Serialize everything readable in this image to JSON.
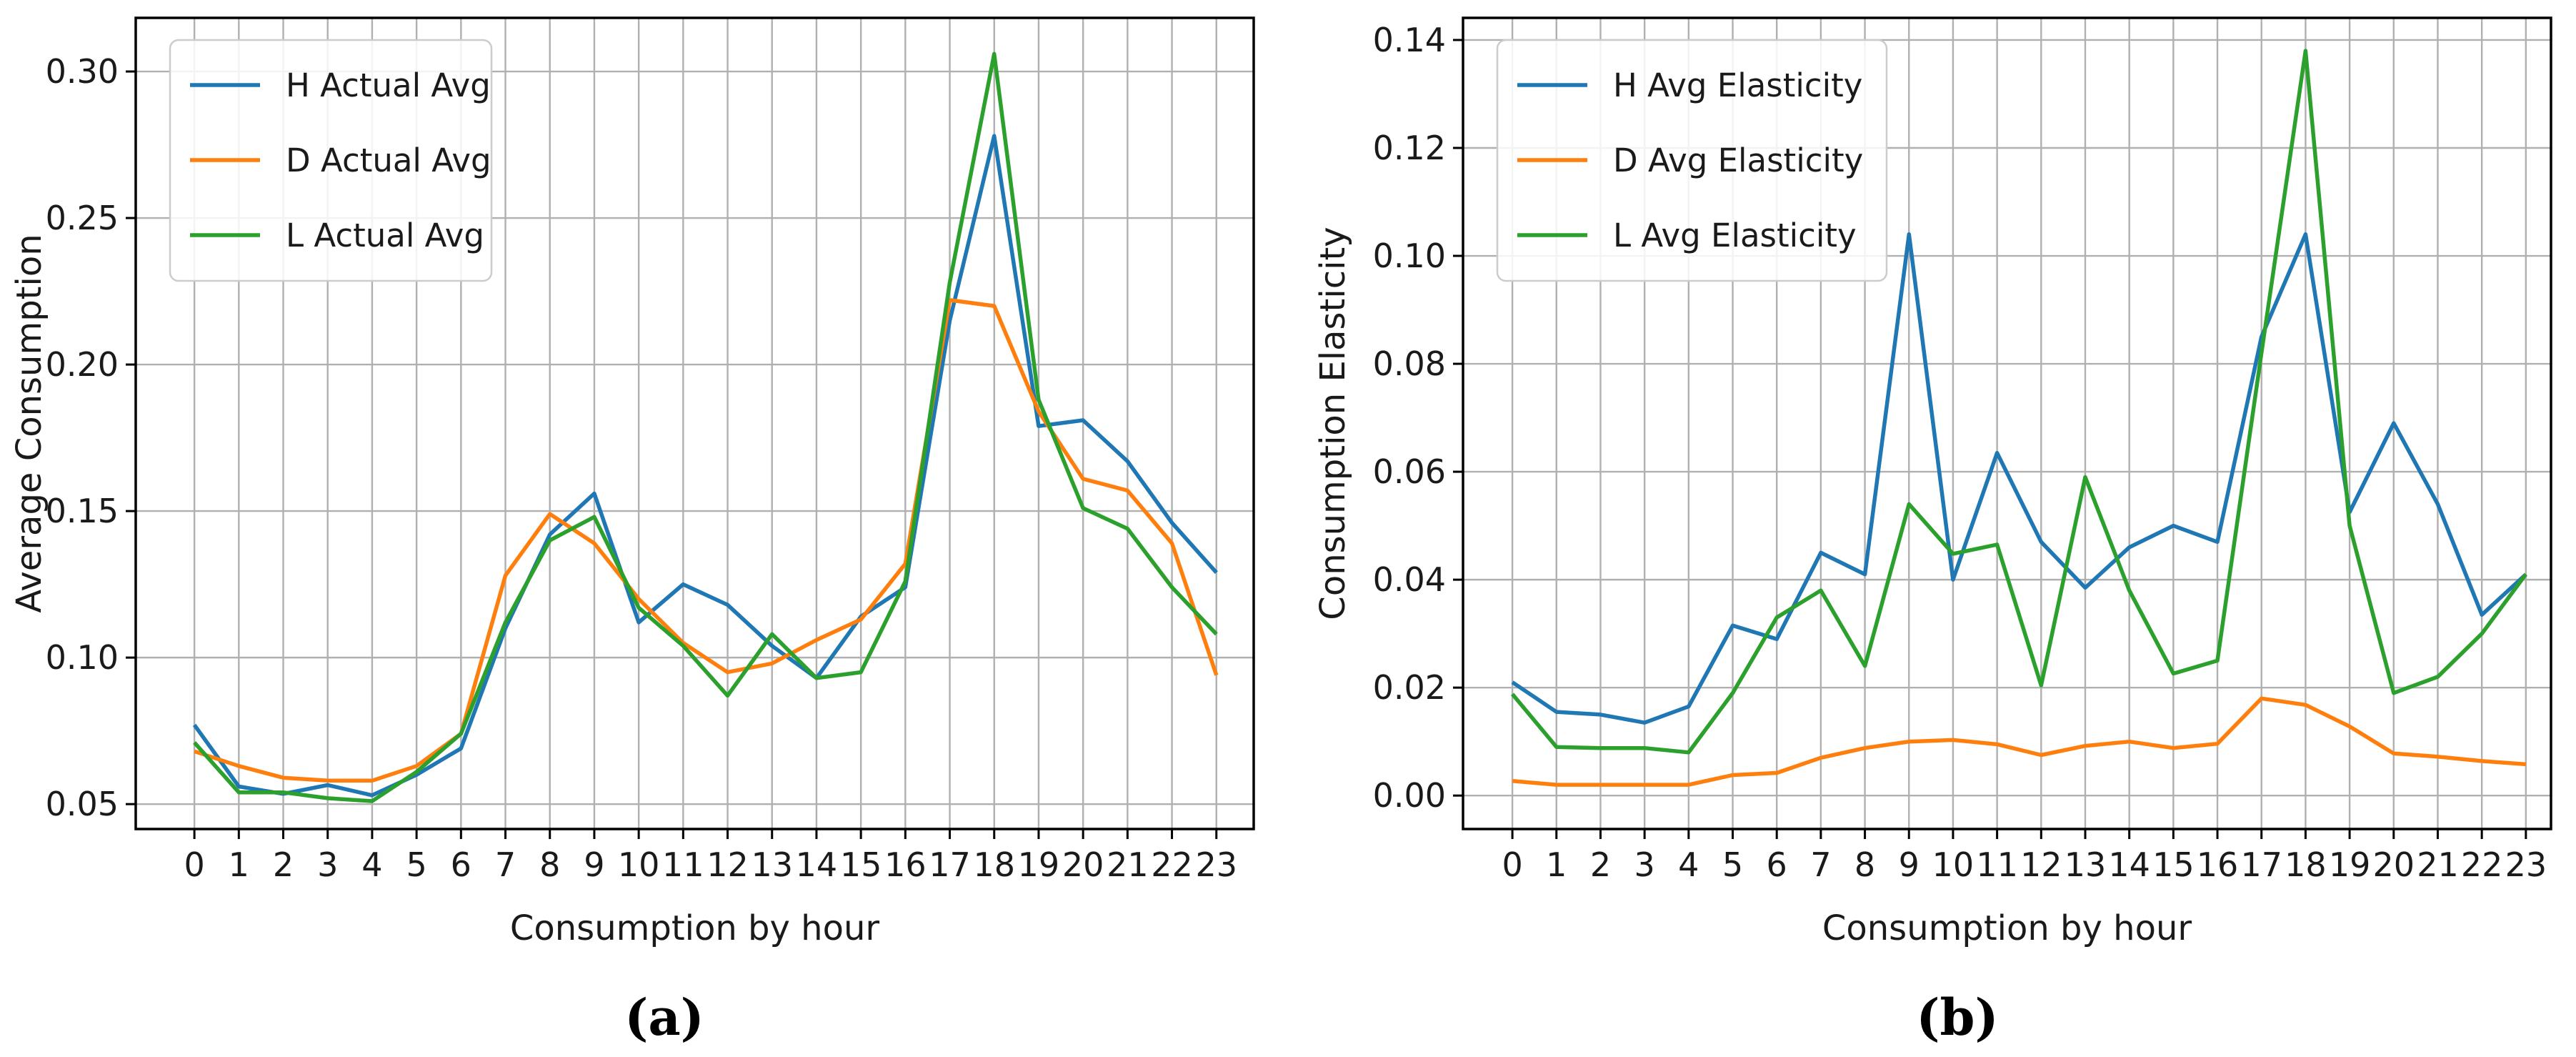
{
  "page": {
    "background": "#ffffff"
  },
  "chart_data": [
    {
      "id": "a",
      "type": "line",
      "caption": "(a)",
      "xlabel": "Consumption by hour",
      "ylabel": "Average Consumption",
      "x": [
        0,
        1,
        2,
        3,
        4,
        5,
        6,
        7,
        8,
        9,
        10,
        11,
        12,
        13,
        14,
        15,
        16,
        17,
        18,
        19,
        20,
        21,
        22,
        23
      ],
      "yticks": [
        0.05,
        0.1,
        0.15,
        0.2,
        0.25,
        0.3
      ],
      "ylim": [
        0.0415,
        0.3183
      ],
      "xlim": [
        -1.32,
        23.84
      ],
      "grid": true,
      "legend_position": "upper-left",
      "series": [
        {
          "name": "H Actual Avg",
          "color": "#1f77b4",
          "values": [
            0.077,
            0.056,
            0.0535,
            0.0565,
            0.053,
            0.06,
            0.069,
            0.11,
            0.142,
            0.156,
            0.112,
            0.125,
            0.118,
            0.104,
            0.093,
            0.114,
            0.124,
            0.215,
            0.278,
            0.179,
            0.181,
            0.167,
            0.146,
            0.129
          ]
        },
        {
          "name": "D Actual Avg",
          "color": "#ff7f0e",
          "values": [
            0.068,
            0.063,
            0.059,
            0.058,
            0.058,
            0.063,
            0.074,
            0.128,
            0.149,
            0.139,
            0.12,
            0.105,
            0.095,
            0.098,
            0.106,
            0.113,
            0.132,
            0.222,
            0.22,
            0.184,
            0.161,
            0.157,
            0.139,
            0.094
          ]
        },
        {
          "name": "L Actual Avg",
          "color": "#2ca02c",
          "values": [
            0.071,
            0.054,
            0.054,
            0.052,
            0.051,
            0.061,
            0.074,
            0.112,
            0.14,
            0.148,
            0.117,
            0.104,
            0.087,
            0.108,
            0.093,
            0.095,
            0.126,
            0.228,
            0.306,
            0.188,
            0.151,
            0.144,
            0.124,
            0.108
          ]
        }
      ]
    },
    {
      "id": "b",
      "type": "line",
      "caption": "(b)",
      "xlabel": "Consumption by hour",
      "ylabel": "Consumption Elasticity",
      "x": [
        0,
        1,
        2,
        3,
        4,
        5,
        6,
        7,
        8,
        9,
        10,
        11,
        12,
        13,
        14,
        15,
        16,
        17,
        18,
        19,
        20,
        21,
        22,
        23
      ],
      "yticks": [
        0.0,
        0.02,
        0.04,
        0.06,
        0.08,
        0.1,
        0.12,
        0.14
      ],
      "ylim": [
        -0.0062,
        0.1441
      ],
      "xlim": [
        -1.12,
        23.57
      ],
      "grid": true,
      "legend_position": "upper-left",
      "series": [
        {
          "name": "H Avg Elasticity",
          "color": "#1f77b4",
          "values": [
            0.021,
            0.0155,
            0.015,
            0.0135,
            0.0165,
            0.0315,
            0.029,
            0.045,
            0.041,
            0.104,
            0.04,
            0.0635,
            0.047,
            0.0385,
            0.046,
            0.05,
            0.047,
            0.085,
            0.104,
            0.0525,
            0.069,
            0.054,
            0.0335,
            0.041
          ]
        },
        {
          "name": "D Avg Elasticity",
          "color": "#ff7f0e",
          "values": [
            0.0027,
            0.002,
            0.002,
            0.002,
            0.002,
            0.0038,
            0.0042,
            0.007,
            0.0088,
            0.01,
            0.0103,
            0.0095,
            0.0075,
            0.0092,
            0.01,
            0.0088,
            0.0096,
            0.018,
            0.0168,
            0.0128,
            0.0078,
            0.0072,
            0.0064,
            0.0058
          ]
        },
        {
          "name": "L Avg Elasticity",
          "color": "#2ca02c",
          "values": [
            0.0188,
            0.009,
            0.0088,
            0.0088,
            0.008,
            0.019,
            0.033,
            0.038,
            0.024,
            0.054,
            0.0448,
            0.0465,
            0.0204,
            0.059,
            0.038,
            0.0226,
            0.025,
            0.082,
            0.138,
            0.05,
            0.019,
            0.022,
            0.03,
            0.041
          ]
        }
      ]
    }
  ]
}
